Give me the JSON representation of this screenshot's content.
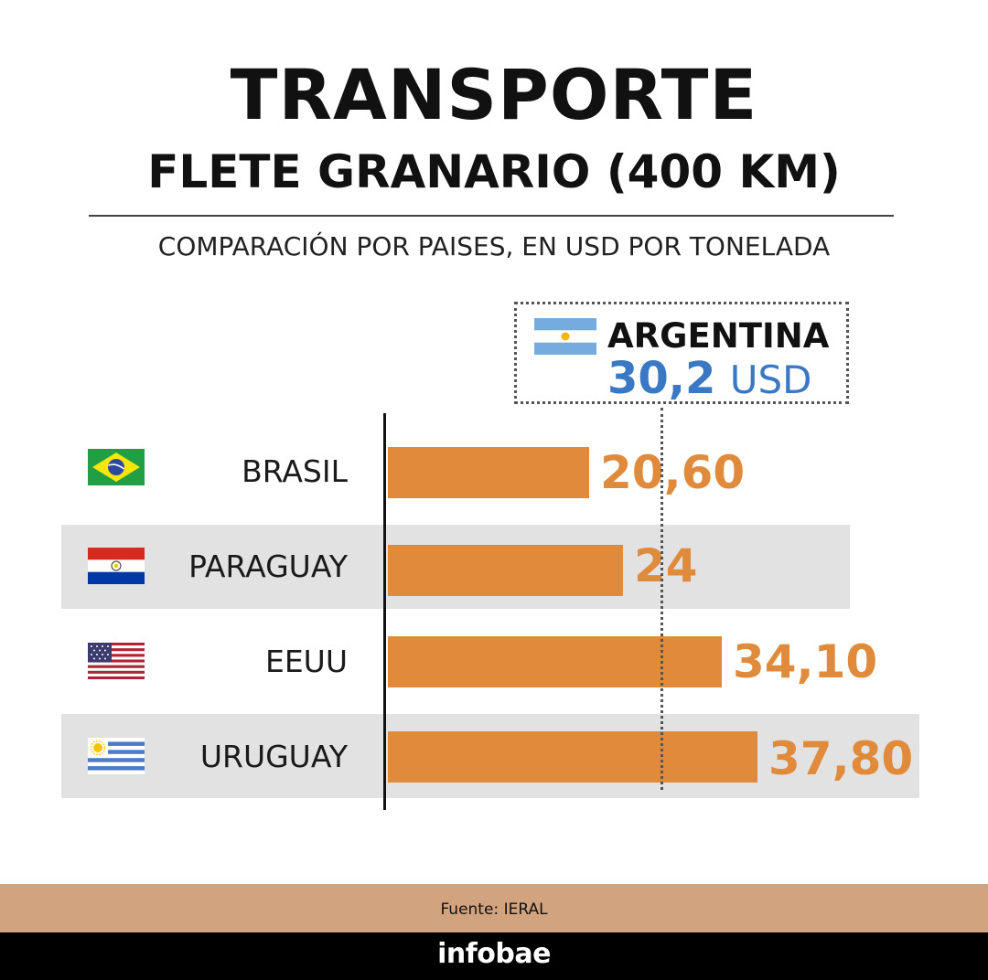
{
  "header": {
    "title": "TRANSPORTE",
    "subtitle": "FLETE GRANARIO (400 KM)",
    "caption": "COMPARACIÓN POR PAISES, EN USD POR TONELADA"
  },
  "chart_data": {
    "type": "bar",
    "orientation": "horizontal",
    "title": "TRANSPORTE",
    "subtitle": "FLETE GRANARIO (400 KM)",
    "categories": [
      "BRASIL",
      "PARAGUAY",
      "EEUU",
      "URUGUAY"
    ],
    "values": [
      20.6,
      24,
      34.1,
      37.8
    ],
    "value_labels": [
      "20,60",
      "24",
      "34,10",
      "37,80"
    ],
    "reference": {
      "name": "ARGENTINA",
      "value": 30.2,
      "value_label": "30,2",
      "unit": "USD"
    },
    "grid": false,
    "legend": "none"
  },
  "flags": [
    "brazil-flag-icon",
    "paraguay-flag-icon",
    "usa-flag-icon",
    "uruguay-flag-icon",
    "argentina-flag-icon"
  ],
  "colors": {
    "bar": "#e08a3c",
    "value_label": "#e08a3c",
    "reference_value": "#3a78c4",
    "band": "#e2e2e2",
    "source_bar": "#d1a37e",
    "footer": "#000000"
  },
  "footer": {
    "source": "Fuente: IERAL",
    "brand": "infobae"
  }
}
